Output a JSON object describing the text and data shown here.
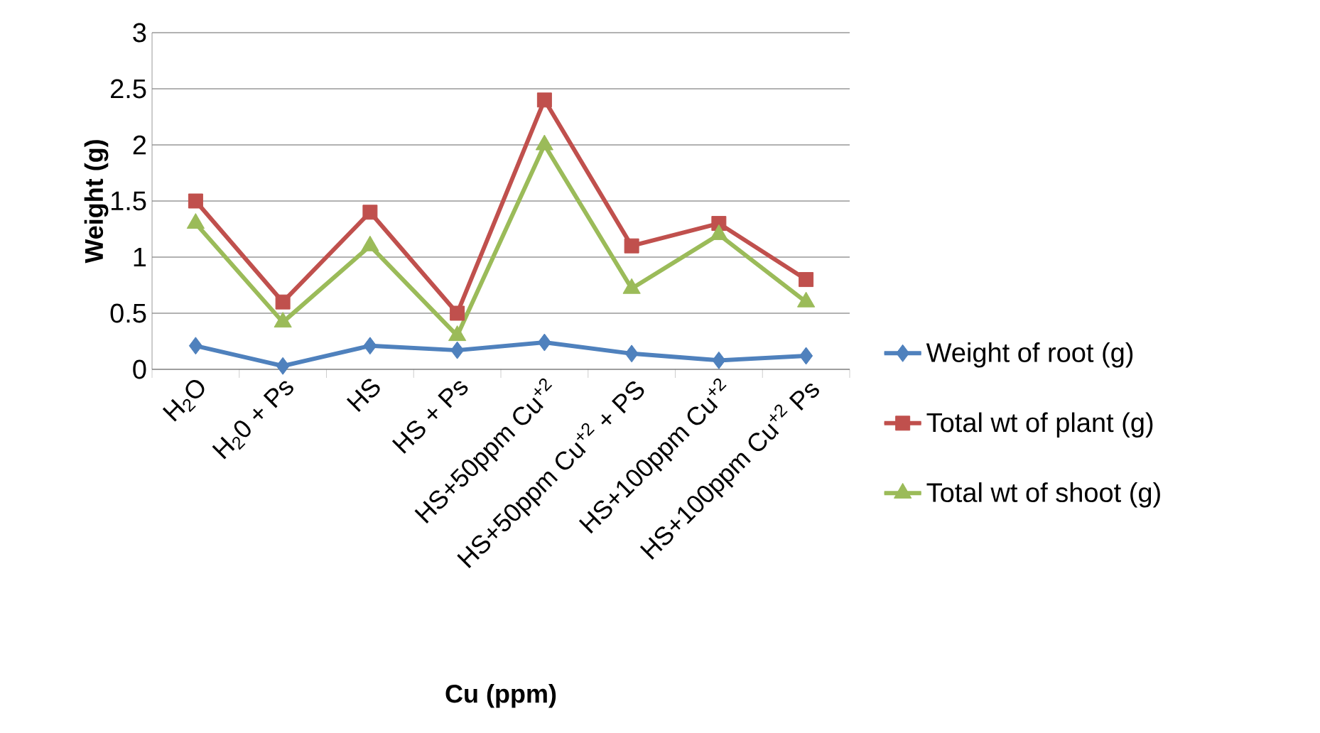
{
  "chart_data": {
    "type": "line",
    "xlabel": "Cu (ppm)",
    "ylabel": "Weight (g)",
    "categories": [
      "H$_{2}$O",
      "H$_{2}$0 + Ps",
      "HS",
      "HS + Ps",
      "HS+50ppm Cu$^{+2}$",
      "HS+50ppm Cu$^{+2}$ + PS",
      "HS+100ppm Cu$^{+2}$",
      "HS+100ppm Cu$^{+2}$ Ps"
    ],
    "series": [
      {
        "name": "Weight of root (g)",
        "color": "#4f81bd",
        "marker": "diamond",
        "values": [
          0.21,
          0.03,
          0.21,
          0.17,
          0.24,
          0.14,
          0.08,
          0.12
        ]
      },
      {
        "name": "Total wt of plant (g)",
        "color": "#c0504d",
        "marker": "square",
        "values": [
          1.5,
          0.6,
          1.4,
          0.5,
          2.4,
          1.1,
          1.3,
          0.8
        ]
      },
      {
        "name": "Total wt of shoot (g)",
        "color": "#9bbb59",
        "marker": "triangle",
        "values": [
          1.3,
          0.42,
          1.1,
          0.3,
          2.0,
          0.72,
          1.2,
          0.6
        ]
      }
    ],
    "ylim": [
      0,
      3
    ],
    "yticks": [
      0,
      0.5,
      1,
      1.5,
      2,
      2.5,
      3
    ],
    "grid": "y",
    "legend": "right",
    "line_style": "solid"
  }
}
